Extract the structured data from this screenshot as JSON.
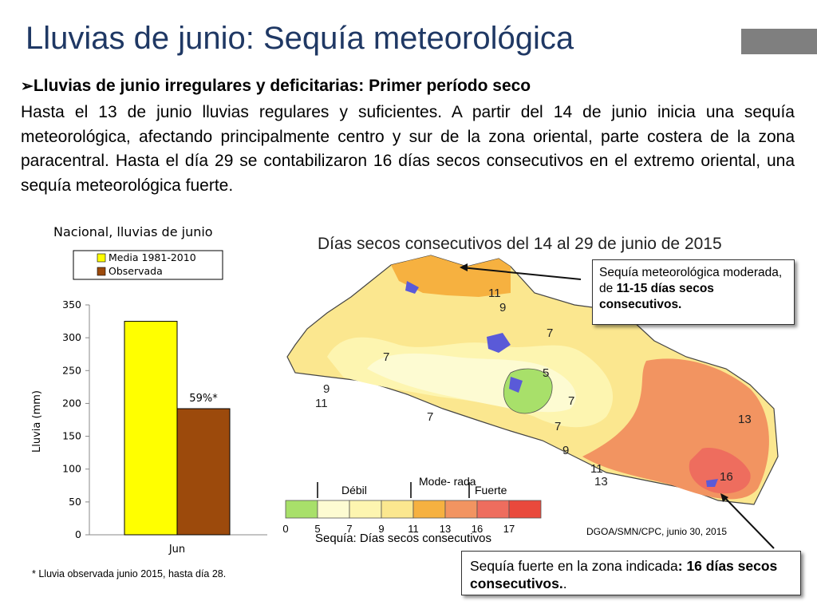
{
  "slide": {
    "title": "Lluvias de junio: Sequía meteorológica",
    "bullet_heading": "Lluvias de junio irregulares y deficitarias: Primer período seco",
    "paragraph": "Hasta el 13 de junio lluvias regulares y suficientes. A partir del 14 de junio inicia una sequía meteorológica, afectando principalmente centro y sur de la zona oriental, parte costera de la zona paracentral. Hasta el día 29 se contabilizaron 16 días secos consecutivos en el extremo oriental, una sequía meteorológica fuerte."
  },
  "chart_data": {
    "type": "bar",
    "title": "Nacional, lluvias de junio",
    "categories": [
      "Jun"
    ],
    "series": [
      {
        "name": "Media 1981-2010",
        "values": [
          325
        ],
        "color": "#ffff00"
      },
      {
        "name": "Observada",
        "values": [
          192
        ],
        "color": "#9c4a0c"
      }
    ],
    "ylabel": "Lluvia (mm)",
    "ylim": [
      0,
      350
    ],
    "yticks": [
      "0",
      "50",
      "100",
      "150",
      "200",
      "250",
      "300",
      "350"
    ],
    "data_label": "59%*",
    "legend": "top",
    "grid": false
  },
  "chart_footnote": "* Lluvia observada junio 2015, hasta día 28.",
  "map": {
    "title": "Días secos consecutivos del 14 al 29 de junio de 2015",
    "contour_labels": [
      "11",
      "9",
      "7",
      "7",
      "5",
      "7",
      "9",
      "11",
      "7",
      "7",
      "9",
      "11",
      "13",
      "16",
      "13"
    ],
    "scale_header_labels": [
      "Débil",
      "Mode-\nrada",
      "Fuerte"
    ],
    "scale_values": [
      "0",
      "5",
      "7",
      "9",
      "11",
      "13",
      "16",
      "17"
    ],
    "scale_colors": [
      "#a8e06a",
      "#fdfbd2",
      "#fdf5b0",
      "#fbe78f",
      "#f6b140",
      "#f29461",
      "#ee6d5e",
      "#e9493c"
    ],
    "scale_caption": "Sequía: Días secos consecutivos",
    "credit": "DGOA/SMN/CPC, junio 30, 2015"
  },
  "callouts": {
    "moderate": {
      "text1": "Sequía meteorológica moderada, de ",
      "bold1": "11-15 días secos consecutivos."
    },
    "strong": {
      "text1": "Sequía fuerte en la zona indicada",
      "bold1": ": 16 días secos consecutivos.",
      "text2": "."
    }
  }
}
